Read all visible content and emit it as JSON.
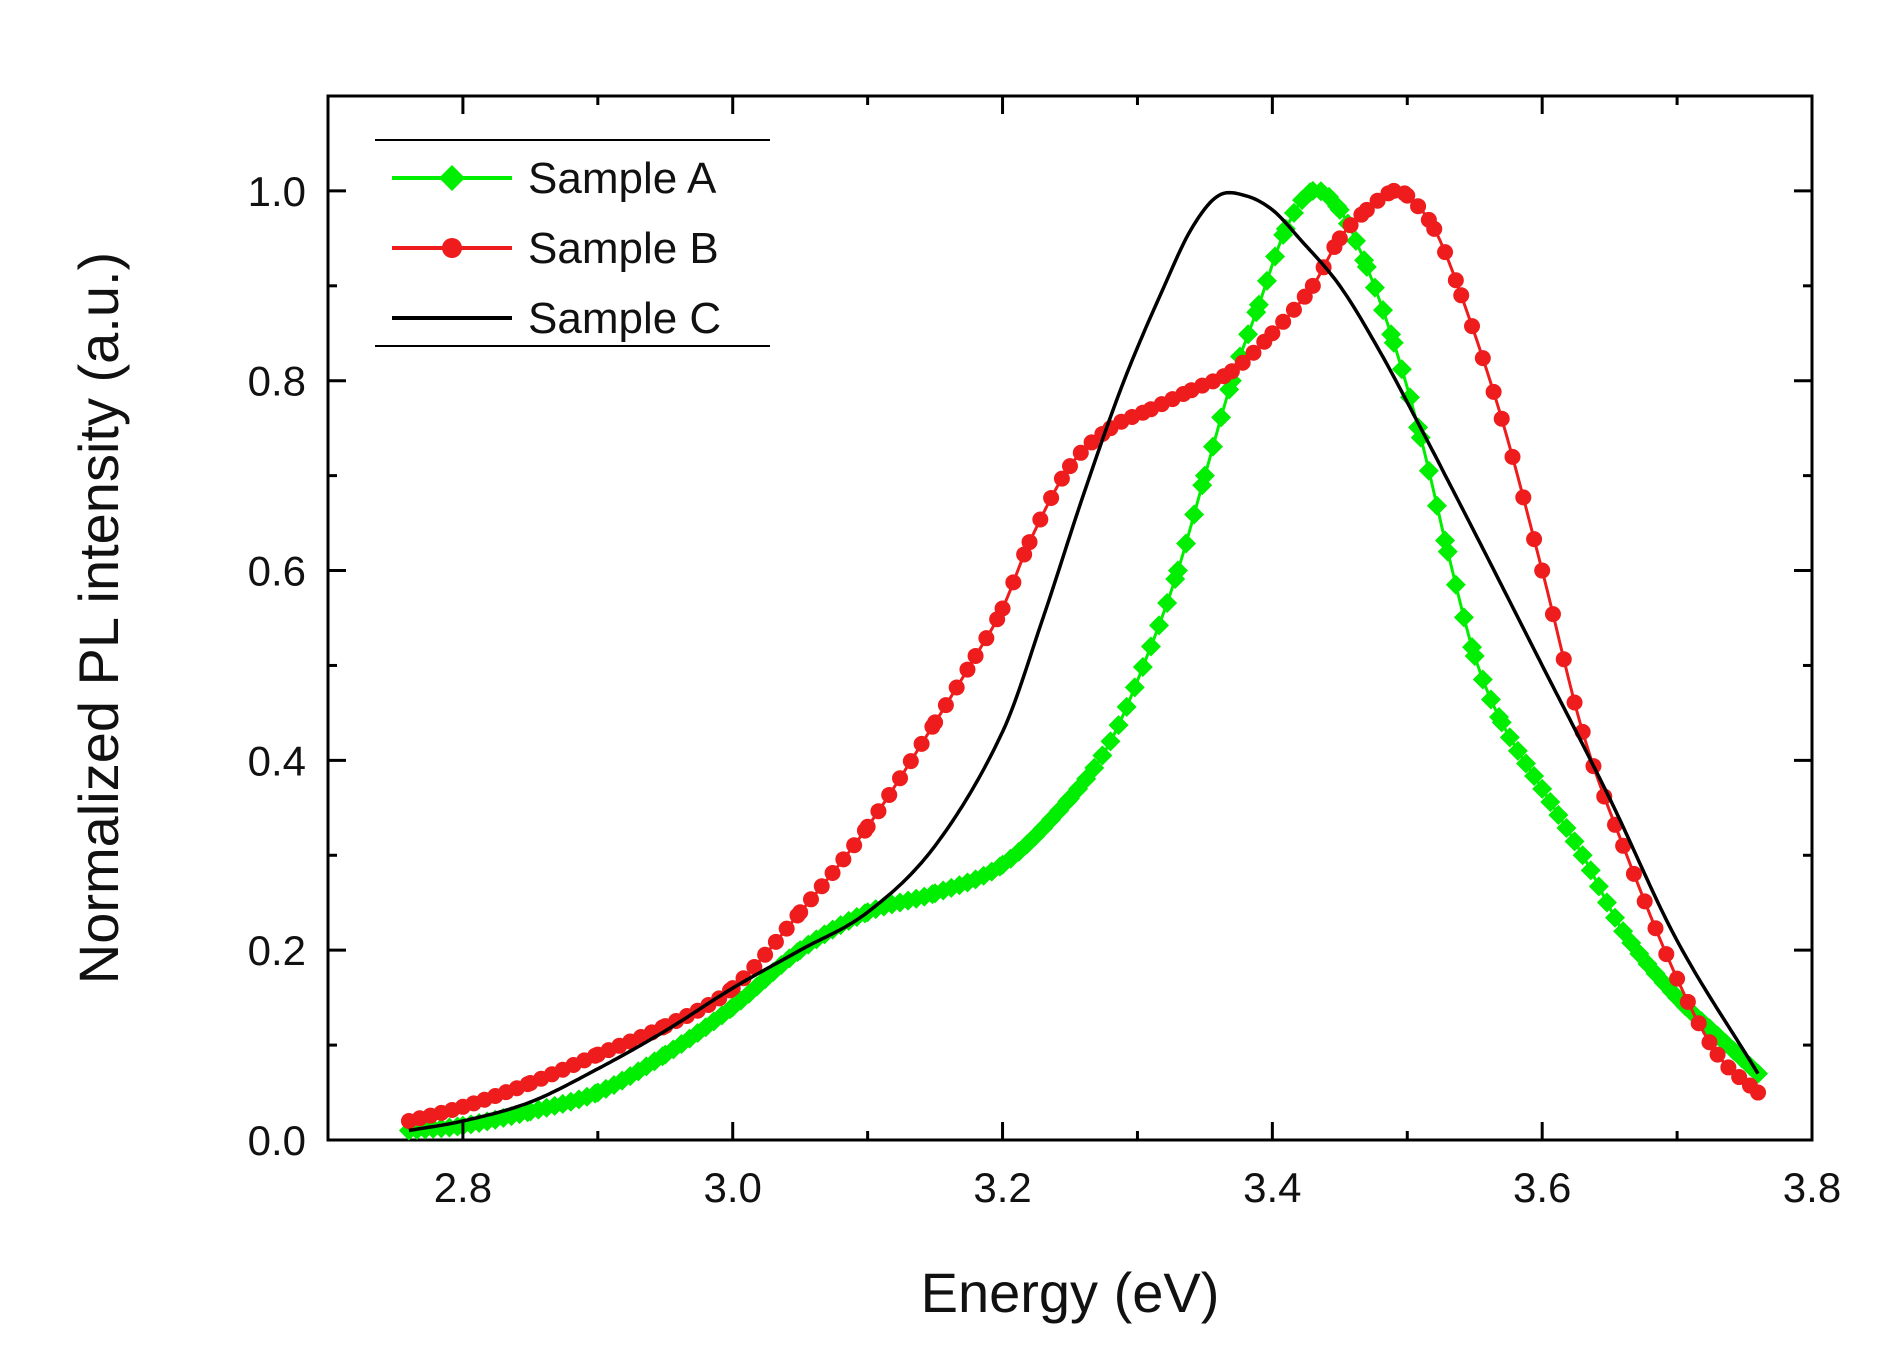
{
  "chart_data": {
    "type": "line",
    "title": "",
    "xlabel": "Energy (eV)",
    "ylabel": "Normalized PL intensity (a.u.)",
    "xlim": [
      2.7,
      3.8
    ],
    "ylim": [
      0.0,
      1.1
    ],
    "x_ticks": [
      2.8,
      3.0,
      3.2,
      3.4,
      3.6,
      3.8
    ],
    "x_tick_labels": [
      "2.8",
      "3.0",
      "3.2",
      "3.4",
      "3.6",
      "3.8"
    ],
    "y_ticks": [
      0.0,
      0.2,
      0.4,
      0.6,
      0.8,
      1.0
    ],
    "y_tick_labels": [
      "0.0",
      "0.2",
      "0.4",
      "0.6",
      "0.8",
      "1.0"
    ],
    "grid": false,
    "legend_position": "top-left",
    "series": [
      {
        "name": "Sample A",
        "color": "#00ee00",
        "marker": "diamond",
        "x": [
          2.76,
          2.8,
          2.85,
          2.9,
          2.95,
          3.0,
          3.05,
          3.1,
          3.15,
          3.2,
          3.25,
          3.28,
          3.31,
          3.33,
          3.35,
          3.37,
          3.39,
          3.41,
          3.43,
          3.45,
          3.47,
          3.49,
          3.51,
          3.53,
          3.55,
          3.57,
          3.6,
          3.63,
          3.66,
          3.7,
          3.73,
          3.76
        ],
        "y": [
          0.01,
          0.015,
          0.03,
          0.05,
          0.09,
          0.14,
          0.2,
          0.24,
          0.26,
          0.29,
          0.36,
          0.42,
          0.52,
          0.6,
          0.7,
          0.8,
          0.88,
          0.96,
          1.0,
          0.98,
          0.92,
          0.84,
          0.74,
          0.62,
          0.51,
          0.44,
          0.37,
          0.3,
          0.22,
          0.15,
          0.11,
          0.07
        ]
      },
      {
        "name": "Sample B",
        "color": "#ee1c1c",
        "marker": "circle",
        "x": [
          2.76,
          2.8,
          2.85,
          2.9,
          2.95,
          3.0,
          3.05,
          3.1,
          3.15,
          3.18,
          3.2,
          3.22,
          3.25,
          3.28,
          3.31,
          3.34,
          3.37,
          3.4,
          3.43,
          3.45,
          3.47,
          3.49,
          3.5,
          3.52,
          3.54,
          3.57,
          3.6,
          3.63,
          3.66,
          3.7,
          3.73,
          3.76
        ],
        "y": [
          0.02,
          0.035,
          0.06,
          0.09,
          0.12,
          0.16,
          0.24,
          0.33,
          0.44,
          0.51,
          0.56,
          0.63,
          0.71,
          0.75,
          0.77,
          0.79,
          0.81,
          0.85,
          0.9,
          0.95,
          0.98,
          1.0,
          0.995,
          0.96,
          0.89,
          0.76,
          0.6,
          0.43,
          0.31,
          0.17,
          0.09,
          0.05
        ]
      },
      {
        "name": "Sample C",
        "color": "#000000",
        "marker": "none",
        "x": [
          2.76,
          2.8,
          2.85,
          2.9,
          2.95,
          3.0,
          3.05,
          3.1,
          3.15,
          3.2,
          3.23,
          3.26,
          3.29,
          3.32,
          3.34,
          3.36,
          3.38,
          3.4,
          3.42,
          3.45,
          3.48,
          3.51,
          3.55,
          3.6,
          3.65,
          3.7,
          3.76
        ],
        "y": [
          0.01,
          0.02,
          0.04,
          0.075,
          0.115,
          0.16,
          0.2,
          0.24,
          0.31,
          0.43,
          0.55,
          0.68,
          0.8,
          0.9,
          0.96,
          0.995,
          0.995,
          0.98,
          0.95,
          0.9,
          0.83,
          0.75,
          0.64,
          0.5,
          0.36,
          0.21,
          0.07
        ]
      }
    ]
  }
}
